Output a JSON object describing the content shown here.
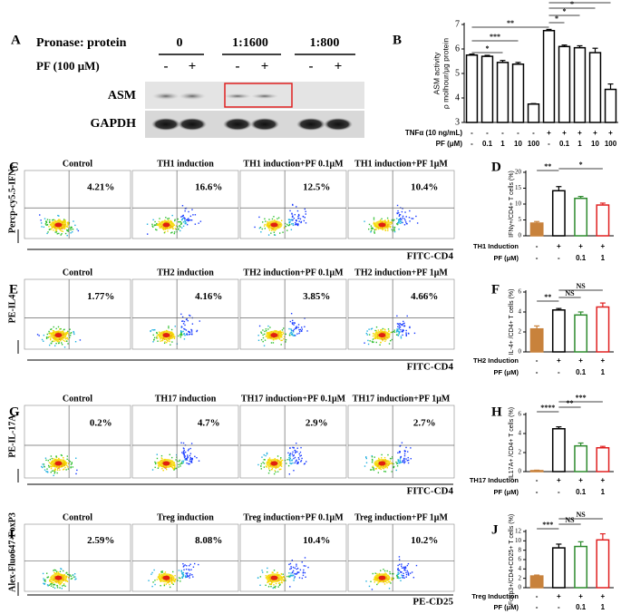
{
  "panels": {
    "A": {
      "label": "A",
      "header": "Pronase: protein",
      "groups": [
        "0",
        "1:1600",
        "1:800"
      ],
      "pf_label": "PF (100 μM)",
      "pf_signs": [
        "-",
        "+",
        "-",
        "+",
        "-",
        "+"
      ],
      "rows": [
        "ASM",
        "GAPDH"
      ]
    },
    "C": {
      "label": "C",
      "y_label": "Percp-cy5.5-IFNγ",
      "x_label": "FITC-CD4",
      "plots": [
        {
          "title": "Control",
          "percent": "4.21%"
        },
        {
          "title": "TH1 induction",
          "percent": "16.6%"
        },
        {
          "title": "TH1 induction+PF 0.1μM",
          "percent": "12.5%"
        },
        {
          "title": "TH1 induction+PF 1μM",
          "percent": "10.4%"
        }
      ]
    },
    "E": {
      "label": "E",
      "y_label": "PE-IL4",
      "x_label": "FITC-CD4",
      "plots": [
        {
          "title": "Control",
          "percent": "1.77%"
        },
        {
          "title": "TH2 induction",
          "percent": "4.16%"
        },
        {
          "title": "TH2 induction+PF 0.1μM",
          "percent": "3.85%"
        },
        {
          "title": "TH2 induction+PF 1μM",
          "percent": "4.66%"
        }
      ]
    },
    "G": {
      "label": "G",
      "y_label": "PE-IL-17A",
      "x_label": "FITC-CD4",
      "plots": [
        {
          "title": "Control",
          "percent": "0.2%"
        },
        {
          "title": "TH17 induction",
          "percent": "4.7%"
        },
        {
          "title": "TH17 induction+PF 0.1μM",
          "percent": "2.9%"
        },
        {
          "title": "TH17 induction+PF 1μM",
          "percent": "2.7%"
        }
      ]
    },
    "I": {
      "label": "I",
      "y_label": "Alex-Fluo647-FoxP3",
      "x_label": "PE-CD25",
      "plots": [
        {
          "title": "Control",
          "percent": "2.59%"
        },
        {
          "title": "Treg induction",
          "percent": "8.08%"
        },
        {
          "title": "Treg induction+PF 0.1μM",
          "percent": "10.4%"
        },
        {
          "title": "Treg induction+PF 1μM",
          "percent": "10.2%"
        }
      ]
    }
  },
  "chart_data": [
    {
      "type": "bar",
      "panel": "B",
      "y_label": [
        "ASM activity",
        "ρ molhour/μg protein"
      ],
      "values": [
        5.75,
        5.7,
        5.45,
        5.38,
        3.75,
        6.75,
        6.1,
        6.05,
        5.85,
        4.35
      ],
      "errors": [
        0.04,
        0.04,
        0.08,
        0.07,
        0.02,
        0.05,
        0.06,
        0.08,
        0.18,
        0.22
      ],
      "colors": [
        "#000",
        "#000",
        "#000",
        "#000",
        "#000",
        "#000",
        "#000",
        "#000",
        "#000",
        "#000"
      ],
      "fills": [
        "#fff",
        "#fff",
        "#fff",
        "#fff",
        "#fff",
        "#fff",
        "#fff",
        "#fff",
        "#fff",
        "#fff"
      ],
      "ylim": [
        3,
        7
      ],
      "yticks": [
        3,
        4,
        5,
        6,
        7
      ],
      "conditions": [
        {
          "name": "TNFα (10 ng/mL)",
          "labels": [
            "-",
            "-",
            "-",
            "-",
            "-",
            "+",
            "+",
            "+",
            "+",
            "+"
          ]
        },
        {
          "name": "PF (μM)",
          "labels": [
            "-",
            "0.1",
            "1",
            "10",
            "100",
            "-",
            "0.1",
            "1",
            "10",
            "100"
          ]
        }
      ],
      "annotations": [
        "*",
        "***",
        "**",
        "*",
        "*",
        "*",
        "**"
      ]
    },
    {
      "type": "bar",
      "panel": "D",
      "y_label": [
        "IFNγ+/CD4+ T cells (%)"
      ],
      "values": [
        4,
        14.2,
        11.8,
        9.7
      ],
      "errors": [
        0.5,
        1.3,
        0.6,
        0.6
      ],
      "colors": [
        "#c8823c",
        "#000",
        "#2e8b2e",
        "#e02020"
      ],
      "fills": [
        "#c8823c",
        "#fff",
        "#fff",
        "#fff"
      ],
      "ylim": [
        0,
        20
      ],
      "yticks": [
        0,
        5,
        10,
        15,
        20
      ],
      "conditions": [
        {
          "name": "TH1 Induction",
          "labels": [
            "-",
            "+",
            "+",
            "+"
          ]
        },
        {
          "name": "PF (μM)",
          "labels": [
            "-",
            "-",
            "0.1",
            "1"
          ]
        }
      ],
      "annotations": [
        "**",
        "*"
      ]
    },
    {
      "type": "bar",
      "panel": "F",
      "y_label": [
        "IL-4+ /CD4+ T cells (%)"
      ],
      "values": [
        2.3,
        4.2,
        3.7,
        4.5
      ],
      "errors": [
        0.3,
        0.15,
        0.3,
        0.4
      ],
      "colors": [
        "#c8823c",
        "#000",
        "#2e8b2e",
        "#e02020"
      ],
      "fills": [
        "#c8823c",
        "#fff",
        "#fff",
        "#fff"
      ],
      "ylim": [
        0,
        6
      ],
      "yticks": [
        0,
        2,
        4,
        6
      ],
      "conditions": [
        {
          "name": "TH2 Induction",
          "labels": [
            "-",
            "+",
            "+",
            "+"
          ]
        },
        {
          "name": "PF (μM)",
          "labels": [
            "-",
            "-",
            "0.1",
            "1"
          ]
        }
      ],
      "annotations": [
        "**",
        "NS",
        "NS"
      ]
    },
    {
      "type": "bar",
      "panel": "H",
      "y_label": [
        "IL17A+ /CD4+ T cells (%)"
      ],
      "values": [
        0.1,
        4.5,
        2.7,
        2.5
      ],
      "errors": [
        0.05,
        0.2,
        0.3,
        0.15
      ],
      "colors": [
        "#c8823c",
        "#000",
        "#2e8b2e",
        "#e02020"
      ],
      "fills": [
        "#c8823c",
        "#fff",
        "#fff",
        "#fff"
      ],
      "ylim": [
        0,
        6
      ],
      "yticks": [
        0,
        2,
        4,
        6
      ],
      "conditions": [
        {
          "name": "TH17 Induction",
          "labels": [
            "-",
            "+",
            "+",
            "+"
          ]
        },
        {
          "name": "PF (μM)",
          "labels": [
            "-",
            "-",
            "0.1",
            "1"
          ]
        }
      ],
      "annotations": [
        "****",
        "**",
        "***"
      ]
    },
    {
      "type": "bar",
      "panel": "J",
      "y_label": [
        "Foxp3+/CD4+CD25+ T cells (%)"
      ],
      "values": [
        2.5,
        8.5,
        8.8,
        10.2
      ],
      "errors": [
        0.2,
        0.8,
        1.0,
        1.3
      ],
      "colors": [
        "#c8823c",
        "#000",
        "#2e8b2e",
        "#e02020"
      ],
      "fills": [
        "#c8823c",
        "#fff",
        "#fff",
        "#fff"
      ],
      "ylim": [
        0,
        12
      ],
      "yticks": [
        0,
        2,
        4,
        6,
        8,
        10,
        12
      ],
      "conditions": [
        {
          "name": "Treg Induction",
          "labels": [
            "-",
            "+",
            "+",
            "+"
          ]
        },
        {
          "name": "PF (μM)",
          "labels": [
            "-",
            "-",
            "0.1",
            "1"
          ]
        }
      ],
      "annotations": [
        "***",
        "NS",
        "NS"
      ]
    }
  ]
}
